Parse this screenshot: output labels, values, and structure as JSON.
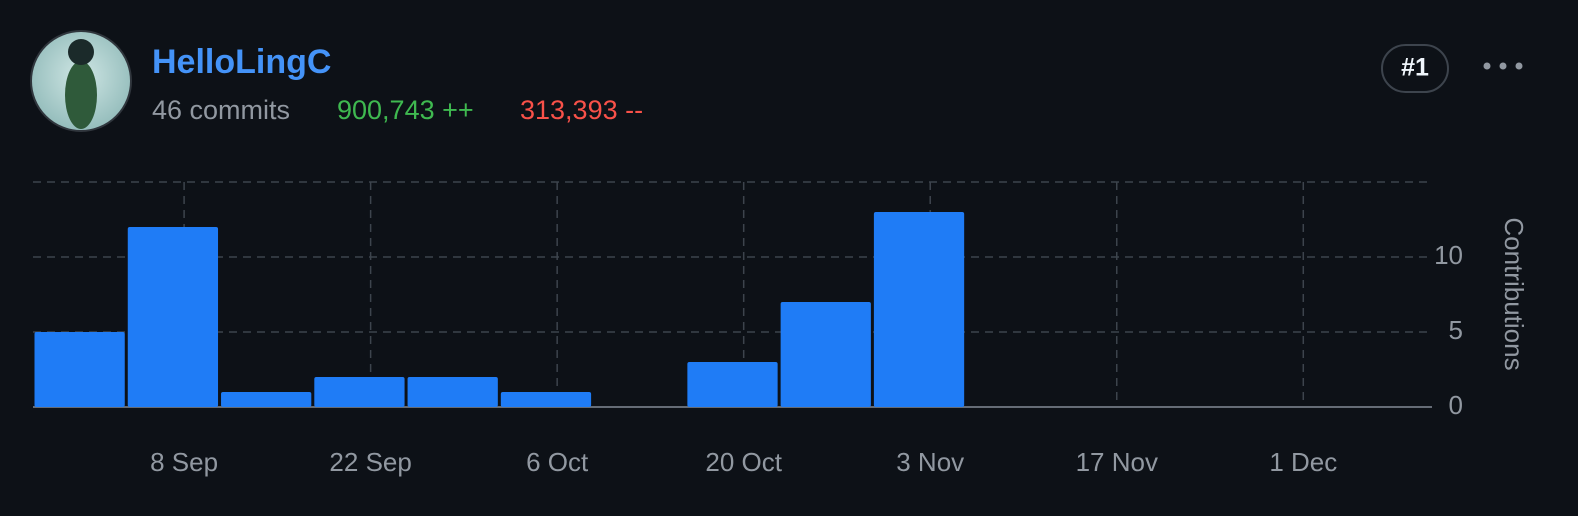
{
  "header": {
    "name": "HelloLingC",
    "commits": "46 commits",
    "additions": "900,743 ++",
    "deletions": "313,393 --",
    "rank": "#1"
  },
  "chart_data": {
    "type": "bar",
    "y_label": "Contributions",
    "categories": [
      null,
      null,
      null,
      null,
      null,
      null,
      null,
      null,
      null,
      null,
      null,
      null,
      null,
      null,
      null
    ],
    "values": [
      5,
      12,
      1,
      2,
      2,
      1,
      0,
      3,
      7,
      13,
      0,
      0,
      0,
      0,
      0
    ],
    "color": "#1f7cf6",
    "x_labels": [
      "8 Sep",
      "22 Sep",
      "6 Oct",
      "20 Oct",
      "3 Nov",
      "17 Nov",
      "1 Dec"
    ],
    "ylim": [
      0,
      15
    ],
    "yticks": [
      0,
      5,
      10
    ],
    "grid": true
  }
}
